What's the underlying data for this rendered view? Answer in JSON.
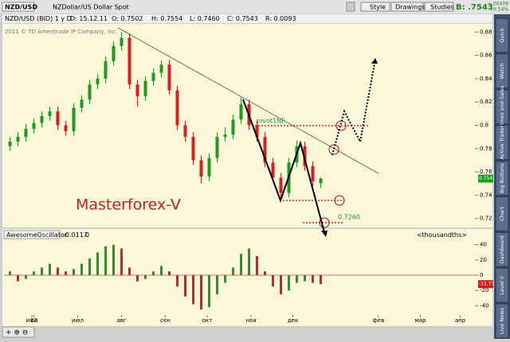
{
  "toolbar": {
    "symbol": "NZD/USD",
    "description": "NZDollar/US Dollar Spot",
    "buttons": [
      "Style",
      "Drawings",
      "Studies"
    ],
    "bid": "B: .7543",
    "change": "+.00409",
    "change_pct": "+0.54%"
  },
  "header": {
    "study": "NZD/USD (BID) 1 y D",
    "date": "D: 15.12.11",
    "open": "O: 0.7502",
    "high": "H: 0.7554",
    "low": "L: 0.7460",
    "close": "C: 0.7543",
    "range": "R: 0.0093",
    "copyright": "2011 © TD Ameritrade IP Company, Inc."
  },
  "annotations": {
    "brand": "Masterforex-V",
    "pivot": "pivot1NF",
    "target": "0.7260"
  },
  "sidebar": [
    "Quick",
    "Watch",
    "Times and Sales",
    "Active Trader",
    "Big Buttons",
    "Chart",
    "Dashboard",
    "Level II",
    "Live News"
  ],
  "chart_data": {
    "type": "candlestick",
    "x": [
      0,
      4,
      8,
      12,
      16,
      20,
      24,
      28,
      32,
      36,
      40,
      44,
      48,
      52,
      56,
      60,
      64,
      68,
      72,
      76,
      80,
      84,
      88,
      92,
      96,
      100,
      104,
      108,
      112,
      116,
      120,
      124,
      128,
      132,
      136,
      140,
      144,
      148,
      152,
      156
    ],
    "ohlc": [
      [
        0.782,
        0.79,
        0.778,
        0.786
      ],
      [
        0.786,
        0.794,
        0.782,
        0.79
      ],
      [
        0.79,
        0.801,
        0.786,
        0.797
      ],
      [
        0.797,
        0.806,
        0.793,
        0.802
      ],
      [
        0.802,
        0.812,
        0.798,
        0.808
      ],
      [
        0.808,
        0.816,
        0.804,
        0.812
      ],
      [
        0.812,
        0.816,
        0.796,
        0.8
      ],
      [
        0.8,
        0.804,
        0.791,
        0.795
      ],
      [
        0.795,
        0.819,
        0.791,
        0.815
      ],
      [
        0.815,
        0.826,
        0.811,
        0.822
      ],
      [
        0.822,
        0.839,
        0.818,
        0.835
      ],
      [
        0.835,
        0.844,
        0.831,
        0.84
      ],
      [
        0.84,
        0.859,
        0.836,
        0.855
      ],
      [
        0.855,
        0.872,
        0.851,
        0.868
      ],
      [
        0.868,
        0.88,
        0.864,
        0.875
      ],
      [
        0.875,
        0.879,
        0.831,
        0.835
      ],
      [
        0.835,
        0.839,
        0.816,
        0.825
      ],
      [
        0.825,
        0.842,
        0.821,
        0.838
      ],
      [
        0.838,
        0.849,
        0.834,
        0.845
      ],
      [
        0.845,
        0.856,
        0.841,
        0.852
      ],
      [
        0.852,
        0.856,
        0.826,
        0.83
      ],
      [
        0.83,
        0.834,
        0.796,
        0.8
      ],
      [
        0.8,
        0.804,
        0.786,
        0.79
      ],
      [
        0.79,
        0.794,
        0.766,
        0.77
      ],
      [
        0.77,
        0.774,
        0.75,
        0.756
      ],
      [
        0.756,
        0.776,
        0.752,
        0.772
      ],
      [
        0.772,
        0.794,
        0.768,
        0.79
      ],
      [
        0.79,
        0.798,
        0.786,
        0.792
      ],
      [
        0.792,
        0.809,
        0.788,
        0.805
      ],
      [
        0.805,
        0.824,
        0.801,
        0.818
      ],
      [
        0.818,
        0.822,
        0.796,
        0.8
      ],
      [
        0.8,
        0.804,
        0.786,
        0.79
      ],
      [
        0.79,
        0.794,
        0.764,
        0.768
      ],
      [
        0.768,
        0.772,
        0.751,
        0.755
      ],
      [
        0.755,
        0.759,
        0.738,
        0.742
      ],
      [
        0.742,
        0.772,
        0.738,
        0.768
      ],
      [
        0.768,
        0.787,
        0.764,
        0.782
      ],
      [
        0.782,
        0.786,
        0.761,
        0.765
      ],
      [
        0.765,
        0.769,
        0.748,
        0.752
      ],
      [
        0.7502,
        0.7554,
        0.746,
        0.7543
      ]
    ],
    "up_color": "#1f9a1f",
    "down_color": "#d42020",
    "xlim": [
      -3,
      233
    ],
    "xticks": [
      {
        "value": 11,
        "label": "июн"
      },
      {
        "value": 34,
        "label": "июл"
      },
      {
        "value": 56,
        "label": "авг"
      },
      {
        "value": 78,
        "label": "сен"
      },
      {
        "value": 99,
        "label": "окт"
      },
      {
        "value": 121,
        "label": "ноя"
      },
      {
        "value": 142,
        "label": "дек"
      },
      12,
      {
        "value": 185,
        "label": "фев"
      },
      {
        "value": 206,
        "label": "мар"
      },
      {
        "value": 226,
        "label": "апр"
      }
    ],
    "ylim": [
      0.713,
      0.887
    ],
    "yticks": [
      0.72,
      0.74,
      0.76,
      0.78,
      0.8,
      0.82,
      0.84,
      0.86,
      0.88
    ],
    "oscillator": {
      "name": "AwesomeOscillator",
      "current": "-0.0117",
      "zero": "0",
      "units": "<thousandths>",
      "values": [
        5,
        -8,
        -5,
        5,
        10,
        15,
        10,
        5,
        8,
        15,
        22,
        30,
        38,
        40,
        35,
        10,
        -8,
        -5,
        5,
        12,
        5,
        -15,
        -28,
        -38,
        -45,
        -42,
        -25,
        -10,
        10,
        28,
        35,
        25,
        5,
        -15,
        -25,
        -20,
        -10,
        -8,
        -10,
        -11.73
      ],
      "ylim": [
        -48,
        48
      ],
      "yticks": [
        -40,
        -20,
        0,
        20,
        40
      ]
    }
  }
}
